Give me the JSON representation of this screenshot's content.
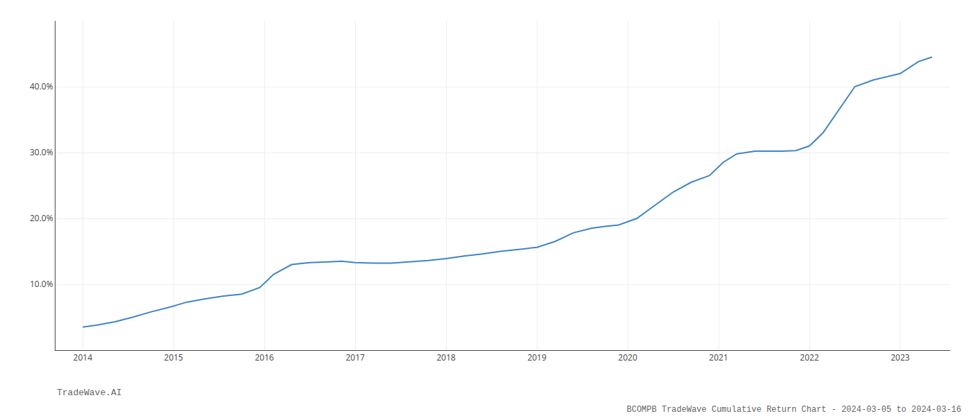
{
  "chart_data": {
    "type": "line",
    "title": "BCOMPB TradeWave Cumulative Return Chart - 2024-03-05 to 2024-03-16",
    "annotations": [
      "TradeWave.AI"
    ],
    "color": "#3d85c8",
    "x": [
      2014.0,
      2014.15,
      2014.35,
      2014.55,
      2014.75,
      2014.95,
      2015.15,
      2015.35,
      2015.55,
      2015.75,
      2015.95,
      2016.1,
      2016.3,
      2016.5,
      2016.7,
      2016.85,
      2017.0,
      2017.2,
      2017.4,
      2017.6,
      2017.8,
      2018.0,
      2018.2,
      2018.4,
      2018.6,
      2018.8,
      2019.0,
      2019.2,
      2019.4,
      2019.6,
      2019.75,
      2019.9,
      2020.1,
      2020.3,
      2020.5,
      2020.7,
      2020.9,
      2021.05,
      2021.2,
      2021.4,
      2021.55,
      2021.7,
      2021.85,
      2022.0,
      2022.15,
      2022.3,
      2022.5,
      2022.7,
      2022.85,
      2023.0,
      2023.2,
      2023.35
    ],
    "values": [
      3.5,
      3.8,
      4.3,
      5.0,
      5.8,
      6.5,
      7.3,
      7.8,
      8.2,
      8.5,
      9.5,
      11.5,
      13.0,
      13.3,
      13.4,
      13.5,
      13.3,
      13.2,
      13.2,
      13.4,
      13.6,
      13.9,
      14.3,
      14.6,
      15.0,
      15.3,
      15.6,
      16.5,
      17.8,
      18.5,
      18.8,
      19.0,
      20.0,
      22.0,
      24.0,
      25.5,
      26.5,
      28.5,
      29.8,
      30.2,
      30.2,
      30.2,
      30.3,
      31.0,
      33.0,
      36.0,
      40.0,
      41.0,
      41.5,
      42.0,
      43.8,
      44.5
    ],
    "xlim": [
      2013.7,
      2023.55
    ],
    "ylim": [
      0,
      50
    ],
    "xticks": [
      2014,
      2015,
      2016,
      2017,
      2018,
      2019,
      2020,
      2021,
      2022,
      2023
    ],
    "yticks": [
      {
        "value": 10.0,
        "label": "10.0%"
      },
      {
        "value": 20.0,
        "label": "20.0%"
      },
      {
        "value": 30.0,
        "label": "30.0%"
      },
      {
        "value": 40.0,
        "label": "40.0%"
      }
    ],
    "grid": true
  }
}
